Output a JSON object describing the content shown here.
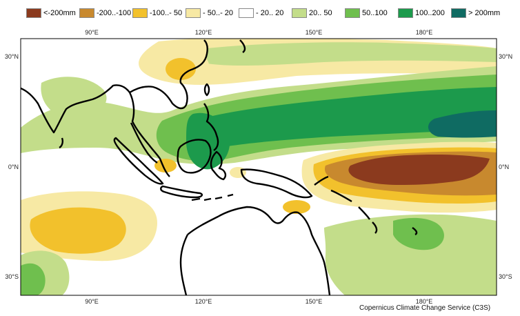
{
  "legend": [
    {
      "label": "<-200mm",
      "color": "#8b3a1e"
    },
    {
      "label": "-200..-100",
      "color": "#c8892e"
    },
    {
      "label": "-100..- 50",
      "color": "#f2c12c"
    },
    {
      "label": "- 50..- 20",
      "color": "#f7e9a4"
    },
    {
      "label": "- 20.. 20",
      "color": "#ffffff"
    },
    {
      "label": "20.. 50",
      "color": "#c3dd8a"
    },
    {
      "label": "50..100",
      "color": "#6fbf4e"
    },
    {
      "label": "100..200",
      "color": "#1c9a4c"
    },
    {
      "label": "> 200mm",
      "color": "#0f6b62"
    }
  ],
  "axes": {
    "top_lon": [
      "90°E",
      "120°E",
      "150°E",
      "180°E"
    ],
    "bottom_lon": [
      "90°E",
      "120°E",
      "150°E",
      "180°E"
    ],
    "left_lat": [
      "30°N",
      "0°N",
      "30°S"
    ],
    "right_lat": [
      "30°N",
      "0°N",
      "30°S"
    ]
  },
  "credit": "Copernicus Climate Change Service (C3S)"
}
